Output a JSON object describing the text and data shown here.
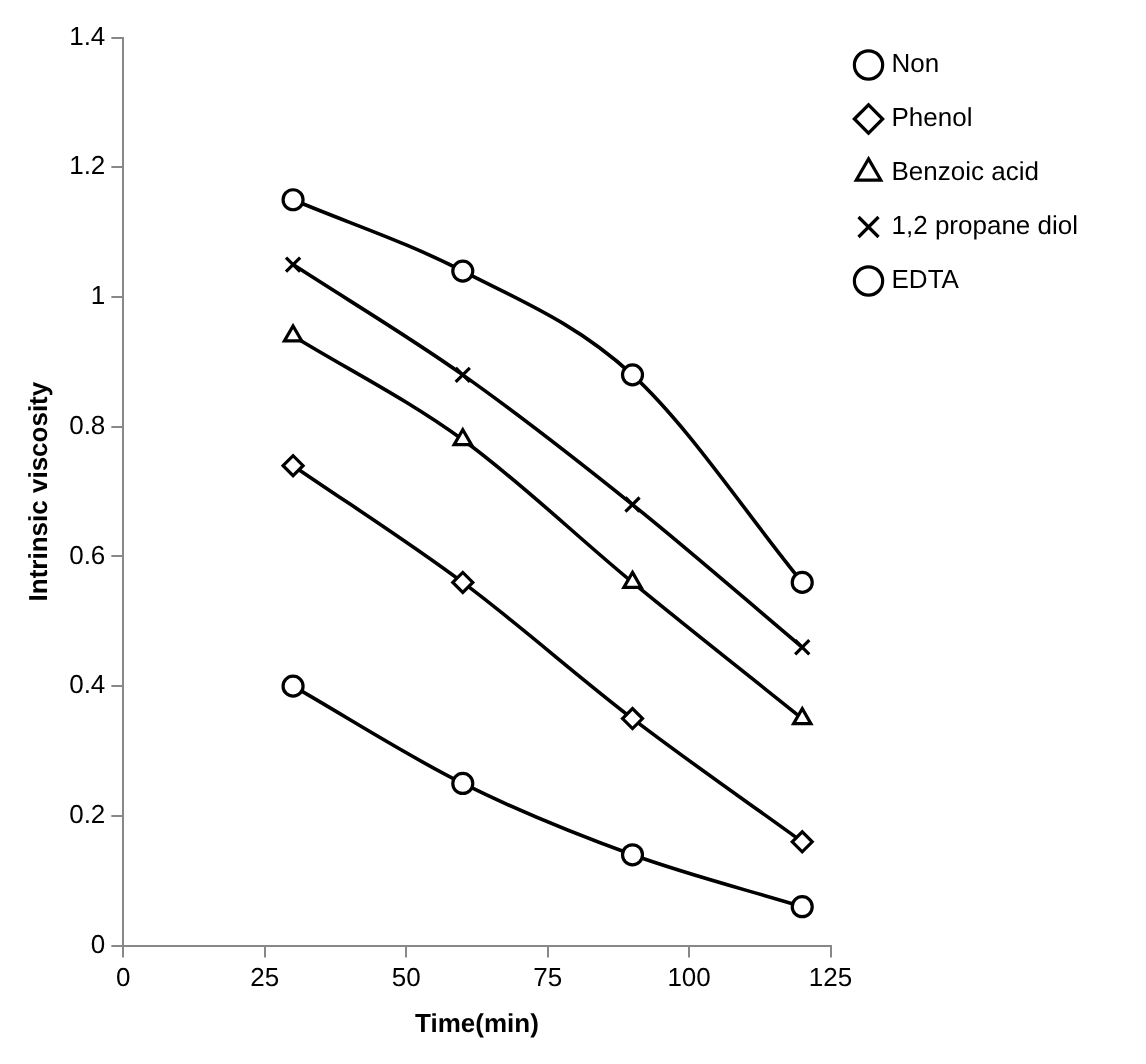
{
  "chart_data": {
    "type": "line",
    "xlabel": "Time(min)",
    "ylabel": "Intrinsic viscosity",
    "x": [
      30,
      60,
      90,
      120
    ],
    "series": [
      {
        "name": "Non",
        "color": "#000000",
        "marker": "circle",
        "values": [
          0.4,
          0.25,
          0.14,
          0.06
        ]
      },
      {
        "name": "Phenol",
        "color": "#000000",
        "marker": "diamond",
        "values": [
          0.74,
          0.56,
          0.35,
          0.16
        ]
      },
      {
        "name": "Benzoic acid",
        "color": "#000000",
        "marker": "triangle",
        "values": [
          0.94,
          0.78,
          0.56,
          0.35
        ]
      },
      {
        "name": "1,2 propane diol",
        "color": "#000000",
        "marker": "cross",
        "values": [
          1.05,
          0.88,
          0.68,
          0.46
        ]
      },
      {
        "name": "EDTA",
        "color": "#000000",
        "marker": "circle",
        "values": [
          1.15,
          1.04,
          0.88,
          0.56
        ]
      }
    ],
    "xlim": [
      0,
      125
    ],
    "xticks": [
      0,
      25,
      50,
      75,
      100,
      125
    ],
    "ylim": [
      0,
      1.4
    ],
    "yticks": [
      0,
      0.2,
      0.4,
      0.6,
      0.8,
      1,
      1.2,
      1.4
    ],
    "grid": false,
    "legend": "top right",
    "line_style": "solid"
  }
}
